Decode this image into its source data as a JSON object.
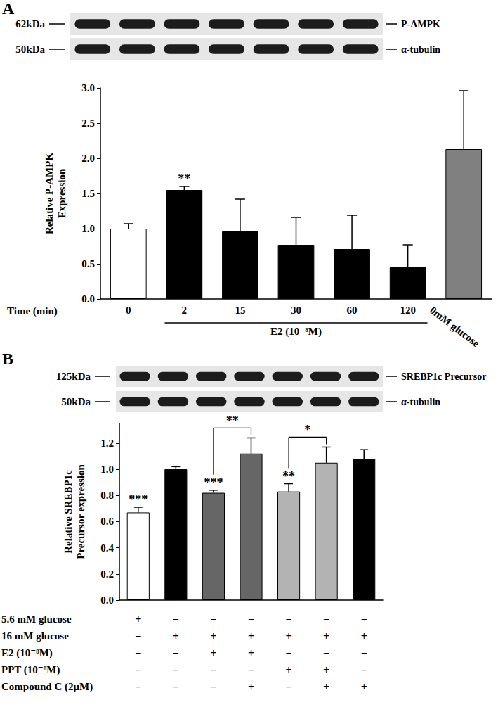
{
  "chart_data": [
    {
      "type": "bar",
      "title": "A",
      "x_label": "Time (min)",
      "y_label": "Relative P-AMPK\nExpression",
      "categories": [
        "0",
        "2",
        "15",
        "30",
        "60",
        "120",
        "0mM glucose"
      ],
      "values": [
        1.0,
        1.55,
        0.96,
        0.77,
        0.71,
        0.45,
        2.13
      ],
      "errors": [
        0.07,
        0.05,
        0.46,
        0.39,
        0.48,
        0.32,
        0.83
      ],
      "colors": [
        "#ffffff",
        "#000000",
        "#000000",
        "#000000",
        "#000000",
        "#000000",
        "#808080"
      ],
      "ylim": [
        0,
        3
      ],
      "yticks": [
        {
          "value": 0,
          "label": "0.0"
        },
        {
          "value": 0.5,
          "label": "0.5"
        },
        {
          "value": 1,
          "label": "1.0"
        },
        {
          "value": 1.5,
          "label": "1.5"
        },
        {
          "value": 2,
          "label": "2.0"
        },
        {
          "value": 2.5,
          "label": "2.5"
        },
        {
          "value": 3,
          "label": "3.0"
        }
      ],
      "annotations": [
        {
          "index": 1,
          "text": "**"
        }
      ],
      "group": {
        "label": "E2 (10⁻⁸M)",
        "from": 1,
        "to": 5
      },
      "blots": [
        {
          "size": "62kDa",
          "label": "P-AMPK"
        },
        {
          "size": "50kDa",
          "label": "α-tubulin"
        }
      ]
    },
    {
      "type": "bar",
      "title": "B",
      "y_label": "Relative SREBP1c\nPrecursor expression",
      "categories": [
        null,
        null,
        null,
        null,
        null,
        null,
        null
      ],
      "tick_labels": "y",
      "values": [
        0.67,
        1.0,
        0.82,
        1.12,
        0.83,
        1.05,
        1.08
      ],
      "errors": [
        0.04,
        0.02,
        0.02,
        0.12,
        0.06,
        0.12,
        0.07
      ],
      "colors": [
        "#ffffff",
        "#000000",
        "#666666",
        "#666666",
        "#b3b3b3",
        "#b3b3b3",
        "#000000"
      ],
      "ylim": [
        0,
        1.35
      ],
      "yticks": [
        {
          "value": 0,
          "label": "0.0"
        },
        {
          "value": 0.2,
          "label": "0.2"
        },
        {
          "value": 0.4,
          "label": "0.4"
        },
        {
          "value": 0.6,
          "label": "0.6"
        },
        {
          "value": 0.8,
          "label": "0.8"
        },
        {
          "value": 1,
          "label": "1.0"
        },
        {
          "value": 1.2,
          "label": "1.2"
        }
      ],
      "annotations": [
        {
          "index": 0,
          "text": "***"
        },
        {
          "index": 2,
          "text": "***"
        },
        {
          "index": 4,
          "text": "**"
        }
      ],
      "brackets": [
        {
          "from": 2,
          "to": 3,
          "text": "**"
        },
        {
          "from": 4,
          "to": 5,
          "text": "*"
        }
      ],
      "conditions": [
        {
          "label": "5.6 mM glucose",
          "marks": [
            "+",
            "−",
            "−",
            "−",
            "−",
            "−",
            "−"
          ]
        },
        {
          "label": "16 mM glucose",
          "marks": [
            "−",
            "+",
            "+",
            "+",
            "+",
            "+",
            "+"
          ]
        },
        {
          "label": "E2 (10⁻⁸M)",
          "marks": [
            "−",
            "−",
            "+",
            "+",
            "−",
            "−",
            "−"
          ]
        },
        {
          "label": "PPT (10⁻⁸M)",
          "marks": [
            "−",
            "−",
            "−",
            "−",
            "+",
            "+",
            "−"
          ]
        },
        {
          "label": "Compound C (2μM)",
          "marks": [
            "−",
            "−",
            "−",
            "+",
            "−",
            "+",
            "+"
          ]
        }
      ],
      "blots": [
        {
          "size": "125kDa",
          "label": "SREBP1c Precursor"
        },
        {
          "size": "50kDa",
          "label": "α-tubulin"
        }
      ]
    }
  ]
}
